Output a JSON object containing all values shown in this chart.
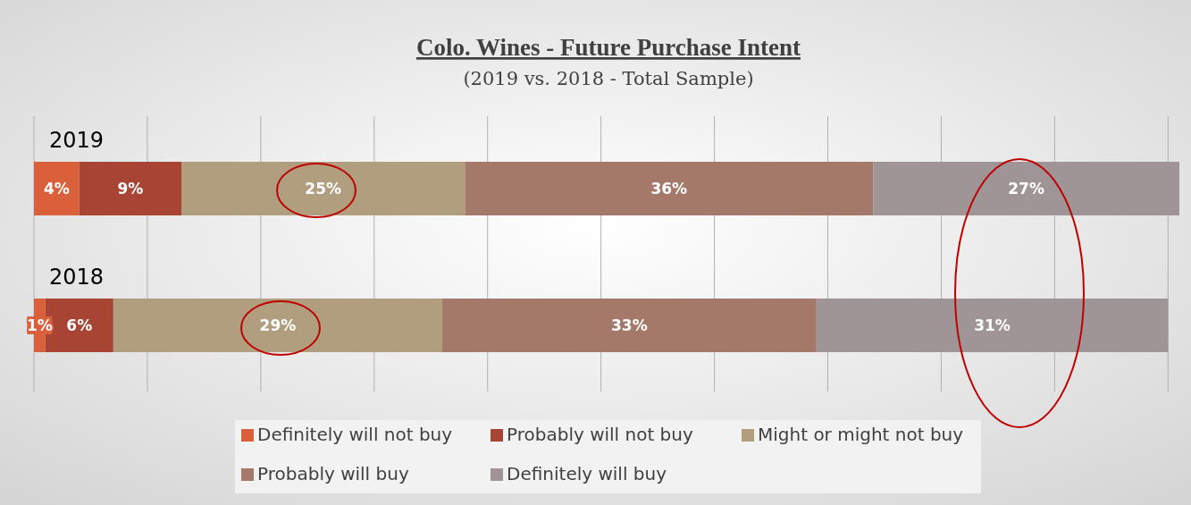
{
  "chart_data": {
    "type": "bar",
    "title": "Colo. Wines - Future Purchase Intent",
    "subtitle": "(2019 vs. 2018 - Total Sample)",
    "orientation": "horizontal",
    "stacked": true,
    "categories": [
      "2019",
      "2018"
    ],
    "series": [
      {
        "name": "Definitely will not buy",
        "color": "#d9603a",
        "values": [
          4,
          1
        ],
        "value_labels": [
          "4%",
          "1%"
        ]
      },
      {
        "name": "Probably will not buy",
        "color": "#a84434",
        "values": [
          9,
          6
        ],
        "value_labels": [
          "9%",
          "6%"
        ]
      },
      {
        "name": "Might or might not buy",
        "color": "#b09e7e",
        "values": [
          25,
          29
        ],
        "value_labels": [
          "25%",
          "29%"
        ]
      },
      {
        "name": "Probably will buy",
        "color": "#a5796a",
        "values": [
          36,
          33
        ],
        "value_labels": [
          "36%",
          "33%"
        ]
      },
      {
        "name": "Definitely will buy",
        "color": "#9f9496",
        "values": [
          27,
          31
        ],
        "value_labels": [
          "27%",
          "31%"
        ]
      }
    ],
    "xlim": [
      0,
      101
    ],
    "xticks": [
      {
        "value": 0,
        "label": null
      },
      {
        "value": 10,
        "label": null
      },
      {
        "value": 20,
        "label": null
      },
      {
        "value": 30,
        "label": null
      },
      {
        "value": 40,
        "label": null
      },
      {
        "value": 50,
        "label": null
      },
      {
        "value": 60,
        "label": null
      },
      {
        "value": 70,
        "label": null
      },
      {
        "value": 80,
        "label": null
      },
      {
        "value": 90,
        "label": null
      },
      {
        "value": 100,
        "label": null
      }
    ],
    "grid": "x",
    "tick_labels": "y",
    "legend": "bottom"
  }
}
